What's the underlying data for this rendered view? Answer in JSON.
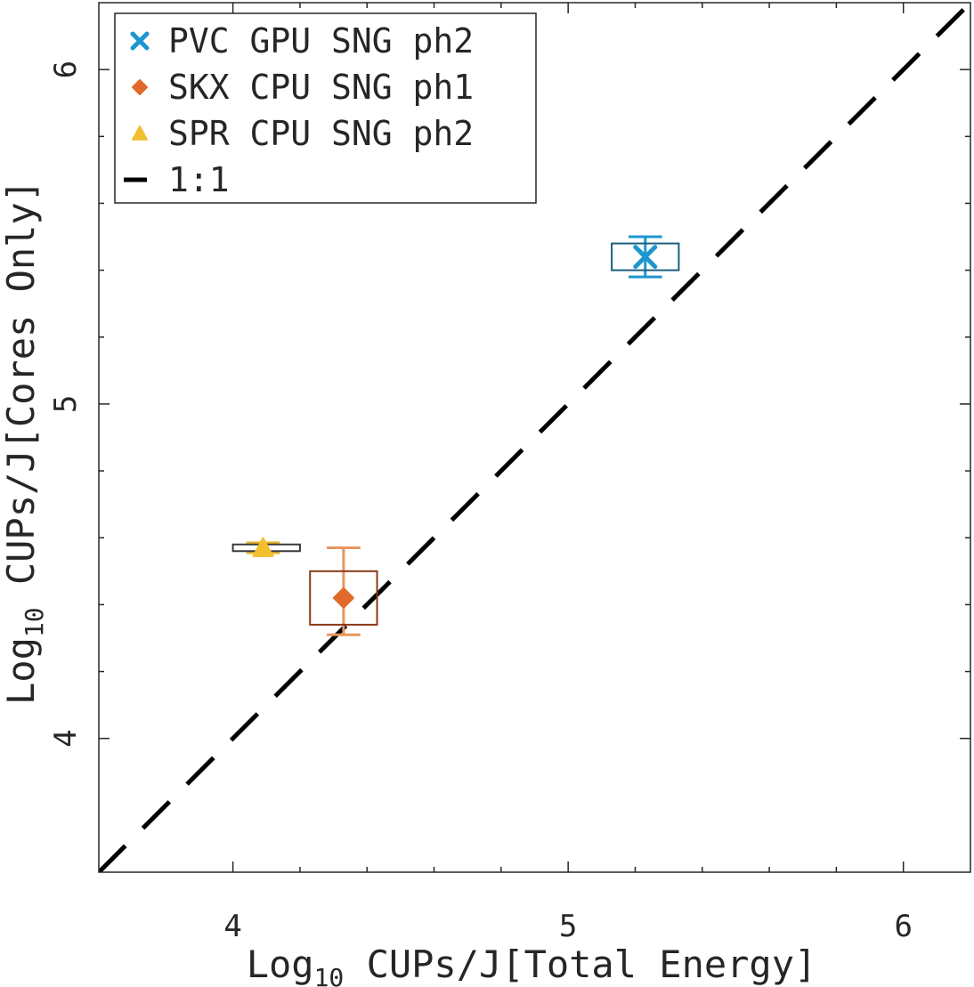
{
  "chart_data": {
    "type": "scatter",
    "xlabel": {
      "base": "Log",
      "sub": "10",
      "rest": " CUPs/J[Total Energy]"
    },
    "ylabel": {
      "base": "Log",
      "sub": "10",
      "rest": " CUPs/J[Cores Only]"
    },
    "xlim": [
      3.6,
      6.2
    ],
    "ylim": [
      3.6,
      6.2
    ],
    "xticks": [
      "4",
      "5",
      "6"
    ],
    "yticks": [
      "4",
      "5",
      "6"
    ],
    "minor_ticks": [
      4.2,
      4.4,
      4.6,
      4.8,
      5.2,
      5.4,
      5.6,
      5.8
    ],
    "grid": false,
    "legend_position": "top-left",
    "series": [
      {
        "name": "PVC GPU SNG ph2",
        "marker": "x",
        "color": "#1d96cf",
        "box_color": "#1b5f80",
        "x": 5.23,
        "y": 5.44,
        "x_box": [
          5.13,
          5.33
        ],
        "y_box": [
          5.4,
          5.48
        ],
        "y_whisker": [
          5.38,
          5.5
        ],
        "whisker_width": 0.1
      },
      {
        "name": "SKX CPU SNG ph1",
        "marker": "diamond",
        "color": "#e16a2b",
        "whisker_color": "#e8965e",
        "box_color": "#8a3a16",
        "x": 4.33,
        "y": 4.42,
        "x_box": [
          4.23,
          4.43
        ],
        "y_box": [
          4.34,
          4.5
        ],
        "y_whisker": [
          4.31,
          4.57
        ],
        "whisker_width": 0.1
      },
      {
        "name": "SPR CPU SNG ph2",
        "marker": "triangle",
        "color": "#f2bf2e",
        "whisker_color": "#e8b72e",
        "box_color": "#3a3a3a",
        "x": 4.09,
        "y": 4.57,
        "x_box": [
          4.0,
          4.2
        ],
        "y_box": [
          4.56,
          4.58
        ],
        "y_whisker": [
          4.555,
          4.585
        ],
        "whisker_width": 0.1
      }
    ],
    "reference_line": {
      "name": "1:1",
      "color": "#000000",
      "style": "dashed"
    }
  }
}
